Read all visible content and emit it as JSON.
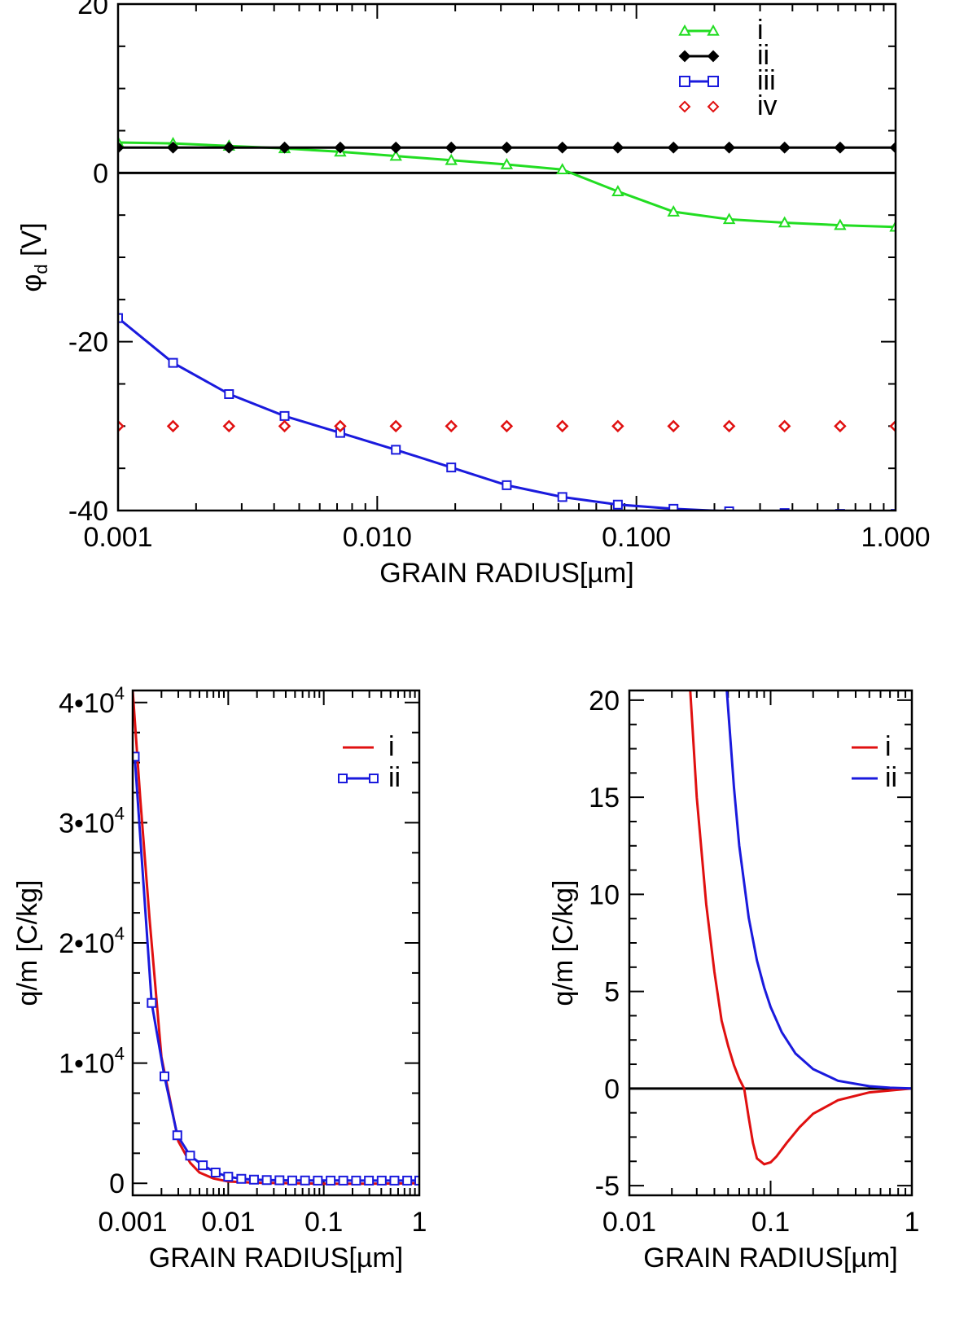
{
  "chart_data": [
    {
      "type": "line",
      "panel": "top",
      "xscale": "log",
      "xlim": [
        0.001,
        1.0
      ],
      "ylim": [
        -40,
        20
      ],
      "xlabel": "GRAIN RADIUS[µm]",
      "ylabel": "φd [V]",
      "ylabel_main": "φ",
      "ylabel_sub": "d",
      "ylabel_unit": " [V]",
      "x_ticks": [
        0.001,
        0.01,
        0.1,
        1.0
      ],
      "x_tick_labels": [
        "0.001",
        "0.010",
        "0.100",
        "1.000"
      ],
      "y_ticks": [
        -40,
        -20,
        0,
        20
      ],
      "y_tick_labels": [
        "-40",
        "-20",
        "0",
        "20"
      ],
      "zero_line": true,
      "legend_position": "top-right",
      "x": [
        0.001,
        0.00163,
        0.00268,
        0.00439,
        0.0072,
        0.0118,
        0.0193,
        0.0316,
        0.0518,
        0.0848,
        0.139,
        0.228,
        0.373,
        0.611,
        1.0
      ],
      "series": [
        {
          "name": "i",
          "color": "#22dd22",
          "marker": "triangle",
          "line": true,
          "values": [
            3.6,
            3.5,
            3.2,
            2.9,
            2.5,
            2.0,
            1.5,
            1.0,
            0.4,
            -2.2,
            -4.6,
            -5.5,
            -5.9,
            -6.2,
            -6.4
          ]
        },
        {
          "name": "ii",
          "color": "#000000",
          "marker": "diamond",
          "line": true,
          "values": [
            3.0,
            3.0,
            3.0,
            3.0,
            3.0,
            3.0,
            3.0,
            3.0,
            3.0,
            3.0,
            3.0,
            3.0,
            3.0,
            3.0,
            3.0
          ]
        },
        {
          "name": "iii",
          "color": "#1a1add",
          "marker": "square",
          "line": true,
          "values": [
            -17.2,
            -22.5,
            -26.2,
            -28.8,
            -30.8,
            -32.8,
            -34.9,
            -37.0,
            -38.4,
            -39.3,
            -39.8,
            -40.1,
            -40.3,
            -40.4,
            -40.4
          ]
        },
        {
          "name": "iv",
          "color": "#e01010",
          "marker": "diamond",
          "line": false,
          "values": [
            -30.0,
            -30.0,
            -30.0,
            -30.0,
            -30.0,
            -30.0,
            -30.0,
            -30.0,
            -30.0,
            -30.0,
            -30.0,
            -30.0,
            -30.0,
            -30.0,
            -30.0
          ]
        }
      ]
    },
    {
      "type": "line",
      "panel": "bottom-left",
      "xscale": "log",
      "xlim": [
        0.001,
        1.0
      ],
      "ylim": [
        -1000,
        41000
      ],
      "xlabel": "GRAIN RADIUS[µm]",
      "ylabel": "q/m [C/kg]",
      "x_ticks": [
        0.001,
        0.01,
        0.1,
        1.0
      ],
      "x_tick_labels": [
        "0.001",
        "0.01",
        "0.1",
        "1"
      ],
      "y_ticks": [
        0,
        10000,
        20000,
        30000,
        40000
      ],
      "y_tick_labels": [
        {
          "main": "0",
          "exp": ""
        },
        {
          "main": "1•10",
          "exp": "4"
        },
        {
          "main": "2•10",
          "exp": "4"
        },
        {
          "main": "3•10",
          "exp": "4"
        },
        {
          "main": "4•10",
          "exp": "4"
        }
      ],
      "legend_position": "top-right",
      "series": [
        {
          "name": "i",
          "color": "#e01010",
          "marker": "none",
          "line": true,
          "x": [
            0.001,
            0.0012,
            0.0015,
            0.002,
            0.003,
            0.004,
            0.005,
            0.007,
            0.01,
            0.02,
            0.05,
            0.1,
            0.3,
            1.0
          ],
          "values": [
            41000,
            32000,
            22000,
            10500,
            3500,
            1700,
            900,
            400,
            150,
            40,
            0,
            -40,
            -30,
            0
          ]
        },
        {
          "name": "ii",
          "color": "#1a1add",
          "marker": "square",
          "line": true,
          "x": [
            0.00105,
            0.00158,
            0.00215,
            0.00293,
            0.00399,
            0.00542,
            0.00738,
            0.01,
            0.0137,
            0.0186,
            0.0253,
            0.0344,
            0.0468,
            0.0637,
            0.0866,
            0.118,
            0.16,
            0.218,
            0.297,
            0.404,
            0.549,
            0.747,
            1.0
          ],
          "values": [
            35500,
            15000,
            8900,
            4000,
            2300,
            1500,
            900,
            550,
            370,
            300,
            270,
            250,
            240,
            235,
            232,
            230,
            230,
            229,
            229,
            229,
            228,
            228,
            228
          ]
        }
      ]
    },
    {
      "type": "line",
      "panel": "bottom-right",
      "xscale": "log",
      "xlim": [
        0.01,
        1.0
      ],
      "ylim": [
        -5.5,
        20.5
      ],
      "xlabel": "GRAIN RADIUS[µm]",
      "ylabel": "q/m [C/kg]",
      "x_ticks": [
        0.01,
        0.1,
        1.0
      ],
      "x_tick_labels": [
        "0.01",
        "0.1",
        "1"
      ],
      "y_ticks": [
        -5,
        0,
        5,
        10,
        15,
        20
      ],
      "y_tick_labels": [
        "-5",
        "0",
        "5",
        "10",
        "15",
        "20"
      ],
      "zero_line": true,
      "legend_position": "top-right",
      "series": [
        {
          "name": "i",
          "color": "#e01010",
          "marker": "none",
          "line": true,
          "x": [
            0.027,
            0.03,
            0.035,
            0.04,
            0.045,
            0.05,
            0.055,
            0.06,
            0.065,
            0.07,
            0.075,
            0.08,
            0.09,
            0.1,
            0.11,
            0.13,
            0.16,
            0.2,
            0.3,
            0.5,
            1.0
          ],
          "values": [
            20.5,
            15.0,
            9.5,
            6.0,
            3.5,
            2.2,
            1.2,
            0.5,
            0.0,
            -1.5,
            -2.8,
            -3.6,
            -3.9,
            -3.8,
            -3.5,
            -2.8,
            -2.0,
            -1.3,
            -0.6,
            -0.2,
            0.0
          ]
        },
        {
          "name": "ii",
          "color": "#1a1add",
          "marker": "none",
          "line": true,
          "x": [
            0.049,
            0.055,
            0.06,
            0.07,
            0.08,
            0.09,
            0.1,
            0.12,
            0.15,
            0.2,
            0.3,
            0.5,
            0.7,
            1.0
          ],
          "values": [
            20.5,
            15.5,
            12.5,
            8.8,
            6.6,
            5.2,
            4.2,
            2.9,
            1.8,
            1.0,
            0.4,
            0.12,
            0.04,
            0.0
          ]
        }
      ]
    }
  ]
}
